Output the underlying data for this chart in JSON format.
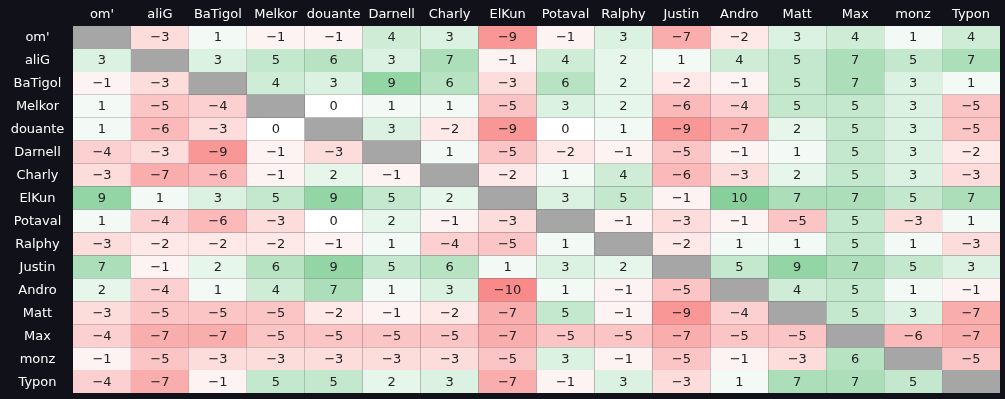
{
  "chart_data": {
    "type": "heatmap",
    "data_labels": true,
    "categories": [
      "om'",
      "aliG",
      "BaTigol",
      "Melkor",
      "douante",
      "Darnell",
      "Charly",
      "ElKun",
      "Potaval",
      "Ralphy",
      "Justin",
      "Andro",
      "Matt",
      "Max",
      "monz",
      "Typon"
    ],
    "y_categories": [
      "om'",
      "aliG",
      "BaTigol",
      "Melkor",
      "douante",
      "Darnell",
      "Charly",
      "ElKun",
      "Potaval",
      "Ralphy",
      "Justin",
      "Andro",
      "Matt",
      "Max",
      "monz",
      "Typon"
    ],
    "cells": [
      [
        null,
        -3,
        1,
        -1,
        -1,
        4,
        3,
        -9,
        -1,
        3,
        -7,
        -2,
        3,
        4,
        1,
        4
      ],
      [
        3,
        null,
        3,
        5,
        6,
        3,
        7,
        -1,
        4,
        2,
        1,
        4,
        5,
        7,
        5,
        7
      ],
      [
        -1,
        -3,
        null,
        4,
        3,
        9,
        6,
        -3,
        6,
        2,
        -2,
        -1,
        5,
        7,
        3,
        1
      ],
      [
        1,
        -5,
        -4,
        null,
        0,
        1,
        1,
        -5,
        3,
        2,
        -6,
        -4,
        5,
        5,
        3,
        -5
      ],
      [
        1,
        -6,
        -3,
        0,
        null,
        3,
        -2,
        -9,
        0,
        1,
        -9,
        -7,
        2,
        5,
        3,
        -5
      ],
      [
        -4,
        -3,
        -9,
        -1,
        -3,
        null,
        1,
        -5,
        -2,
        -1,
        -5,
        -1,
        1,
        5,
        3,
        -2
      ],
      [
        -3,
        -7,
        -6,
        -1,
        2,
        -1,
        null,
        -2,
        1,
        4,
        -6,
        -3,
        2,
        5,
        3,
        -3
      ],
      [
        9,
        1,
        3,
        5,
        9,
        5,
        2,
        null,
        3,
        5,
        -1,
        10,
        7,
        7,
        5,
        7
      ],
      [
        1,
        -4,
        -6,
        -3,
        0,
        2,
        -1,
        -3,
        null,
        -1,
        -3,
        -1,
        -5,
        5,
        -3,
        1
      ],
      [
        -3,
        -2,
        -2,
        -2,
        -1,
        1,
        -4,
        -5,
        1,
        null,
        -2,
        1,
        1,
        5,
        1,
        -3
      ],
      [
        7,
        -1,
        2,
        6,
        9,
        5,
        6,
        1,
        3,
        2,
        null,
        5,
        9,
        7,
        5,
        3
      ],
      [
        2,
        -4,
        1,
        4,
        7,
        1,
        3,
        -10,
        1,
        -1,
        -5,
        null,
        4,
        5,
        1,
        -1
      ],
      [
        -3,
        -5,
        -5,
        -5,
        -2,
        -1,
        -2,
        -7,
        5,
        -1,
        -9,
        -4,
        null,
        5,
        3,
        -7
      ],
      [
        -4,
        -7,
        -7,
        -5,
        -5,
        -5,
        -5,
        -7,
        -5,
        -5,
        -7,
        -5,
        -5,
        null,
        -6,
        -7
      ],
      [
        -1,
        -5,
        -3,
        -3,
        -3,
        -3,
        -3,
        -5,
        3,
        -1,
        -5,
        -1,
        -3,
        6,
        null,
        -5
      ],
      [
        -4,
        -7,
        -1,
        5,
        5,
        2,
        3,
        -7,
        -1,
        3,
        -3,
        1,
        7,
        7,
        5,
        null
      ]
    ]
  }
}
